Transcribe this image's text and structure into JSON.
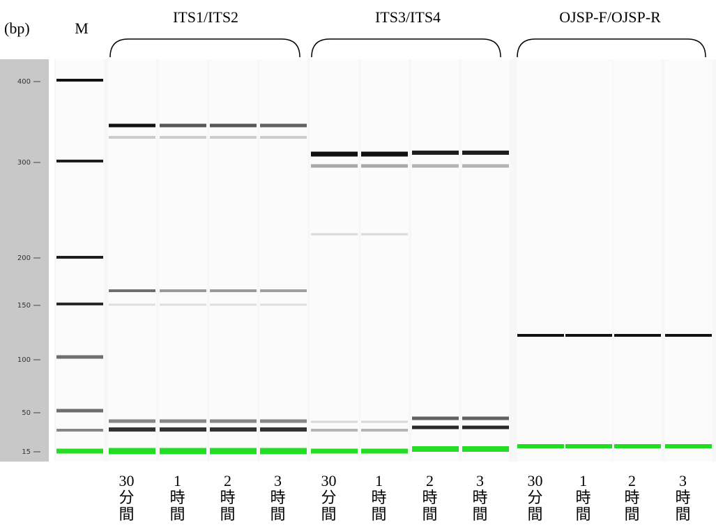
{
  "axis_unit": "(bp)",
  "marker_label": "M",
  "ladder": [
    400,
    300,
    200,
    150,
    100,
    50,
    15
  ],
  "groups": [
    "ITS1/ITS2",
    "ITS3/ITS4",
    "OJSP-F/OJSP-R"
  ],
  "lanes": [
    [
      "30",
      "分",
      "間"
    ],
    [
      "1",
      "時",
      "間"
    ],
    [
      "2",
      "時",
      "間"
    ],
    [
      "3",
      "時",
      "間"
    ],
    [
      "30",
      "分",
      "間"
    ],
    [
      "1",
      "時",
      "間"
    ],
    [
      "2",
      "時",
      "間"
    ],
    [
      "3",
      "時",
      "間"
    ],
    [
      "30",
      "分",
      "間"
    ],
    [
      "1",
      "時",
      "間"
    ],
    [
      "2",
      "時",
      "間"
    ],
    [
      "3",
      "時",
      "間"
    ]
  ]
}
